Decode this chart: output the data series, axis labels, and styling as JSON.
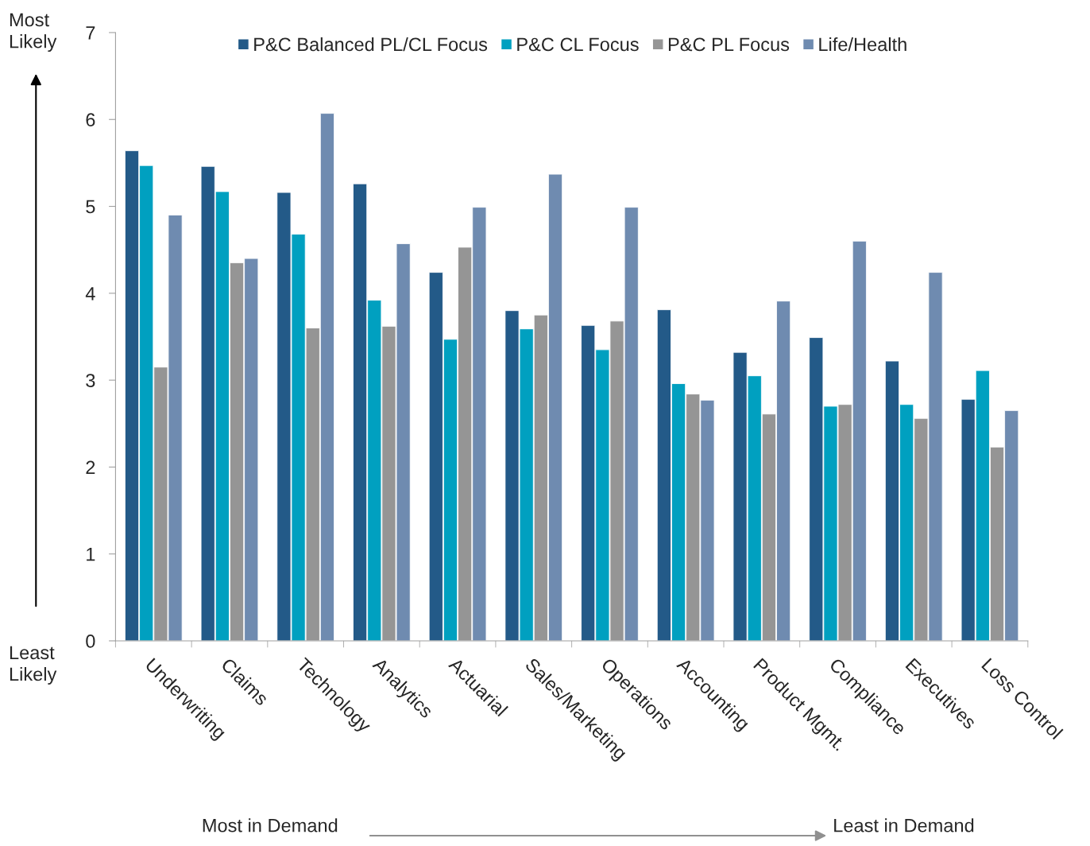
{
  "chart_data": {
    "type": "bar",
    "categories": [
      "Underwriting",
      "Claims",
      "Technology",
      "Analytics",
      "Actuarial",
      "Sales/Marketing",
      "Operations",
      "Accounting",
      "Product Mgmt.",
      "Compliance",
      "Executives",
      "Loss Control"
    ],
    "series": [
      {
        "name": "P&C Balanced PL/CL Focus",
        "color": "#235a88",
        "values": [
          5.64,
          5.46,
          5.16,
          5.26,
          4.24,
          3.8,
          3.63,
          3.81,
          3.32,
          3.49,
          3.22,
          2.78
        ]
      },
      {
        "name": "P&C CL Focus",
        "color": "#00a0c0",
        "values": [
          5.47,
          5.17,
          4.68,
          3.92,
          3.47,
          3.59,
          3.35,
          2.96,
          3.05,
          2.7,
          2.72,
          3.11
        ]
      },
      {
        "name": "P&C PL Focus",
        "color": "#959595",
        "values": [
          3.15,
          4.35,
          3.6,
          3.62,
          4.53,
          3.75,
          3.68,
          2.84,
          2.61,
          2.72,
          2.56,
          2.23
        ]
      },
      {
        "name": "Life/Health",
        "color": "#6f8bb0",
        "values": [
          4.9,
          4.4,
          6.07,
          4.57,
          4.99,
          5.37,
          4.99,
          2.77,
          3.91,
          4.6,
          4.24,
          2.65
        ]
      }
    ],
    "ylim": [
      0,
      7
    ],
    "yticks": [
      0,
      1,
      2,
      3,
      4,
      5,
      6,
      7
    ],
    "grid": false,
    "legend": "top",
    "annotations": [
      "Most\nLikely",
      "Least\nLikely",
      "Most in Demand",
      "Least in Demand"
    ]
  }
}
